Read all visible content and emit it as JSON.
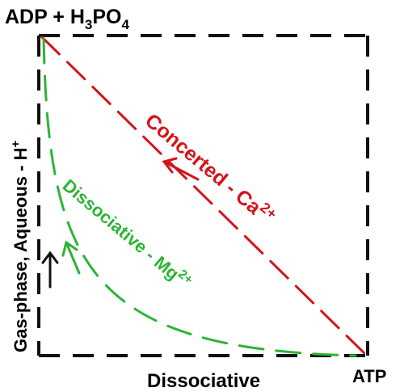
{
  "diagram": {
    "corner_top_left": {
      "main": "ADP + H",
      "sub3": "3",
      "mid": "PO",
      "sub4": "4"
    },
    "corner_bottom_right": "ATP",
    "x_axis_label": "Dissociative",
    "y_axis_label": {
      "main": "Gas-phase, Aqueous - H",
      "sup": "+"
    },
    "pathways": [
      {
        "name": "Concerted",
        "label": "Concerted - Ca",
        "sup": "2+",
        "color": "#d4141a"
      },
      {
        "name": "Dissociative",
        "label": "Dissociative - Mg",
        "sup": "2+",
        "color": "#2bb533"
      }
    ],
    "colors": {
      "frame": "#111111",
      "axis_arrow": "#111111"
    }
  }
}
